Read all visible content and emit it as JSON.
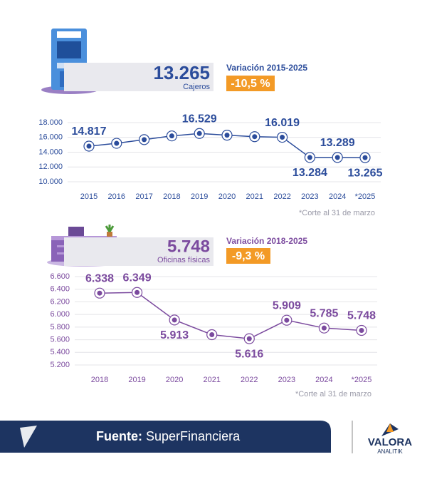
{
  "chart_data": [
    {
      "type": "line",
      "headline": "13.265",
      "headline_label": "Cajeros",
      "variation_label": "Variación 2015-2025",
      "variation": "-10,5 %",
      "categories": [
        "2015",
        "2016",
        "2017",
        "2018",
        "2019",
        "2020",
        "2021",
        "2022",
        "2023",
        "2024",
        "*2025"
      ],
      "series": [
        {
          "color": "#2b4c9b",
          "values": [
            14817,
            15200,
            15700,
            16200,
            16529,
            16300,
            16100,
            16019,
            13284,
            13289,
            13265
          ],
          "value_labels": [
            "14.817",
            null,
            null,
            null,
            "16.529",
            null,
            null,
            "16.019",
            "13.284",
            "13.289",
            "13.265"
          ]
        }
      ],
      "ylim": [
        10000,
        18000
      ],
      "yticks": [
        {
          "value": 10000,
          "label": "10.000"
        },
        {
          "value": 12000,
          "label": "12.000"
        },
        {
          "value": 14000,
          "label": "14.000"
        },
        {
          "value": 16000,
          "label": "16.000"
        },
        {
          "value": 18000,
          "label": "18.000"
        }
      ],
      "grid": true,
      "note": "*Corte al 31 de marzo"
    },
    {
      "type": "line",
      "headline": "5.748",
      "headline_label": "Oficinas físicas",
      "variation_label": "Variación 2018-2025",
      "variation": "-9,3 %",
      "categories": [
        "2018",
        "2019",
        "2020",
        "2021",
        "2022",
        "2023",
        "2024",
        "*2025"
      ],
      "series": [
        {
          "color": "#7b4a9e",
          "values": [
            6338,
            6349,
            5913,
            5680,
            5616,
            5909,
            5785,
            5748
          ],
          "value_labels": [
            "6.338",
            "6.349",
            "5.913",
            null,
            "5.616",
            "5.909",
            "5.785",
            "5.748"
          ]
        }
      ],
      "ylim": [
        5200,
        6600
      ],
      "yticks": [
        {
          "value": 5200,
          "label": "5.200"
        },
        {
          "value": 5400,
          "label": "5.400"
        },
        {
          "value": 5600,
          "label": "5.600"
        },
        {
          "value": 5800,
          "label": "5.800"
        },
        {
          "value": 6000,
          "label": "6.000"
        },
        {
          "value": 6200,
          "label": "6.200"
        },
        {
          "value": 6400,
          "label": "6.400"
        },
        {
          "value": 6600,
          "label": "6.600"
        }
      ],
      "grid": true,
      "note": "*Corte al 31 de marzo"
    }
  ],
  "footer": {
    "source_label": "Fuente:",
    "source": "SuperFinanciera",
    "brand": "VALORA",
    "brand_sub": "ANALITIK"
  }
}
